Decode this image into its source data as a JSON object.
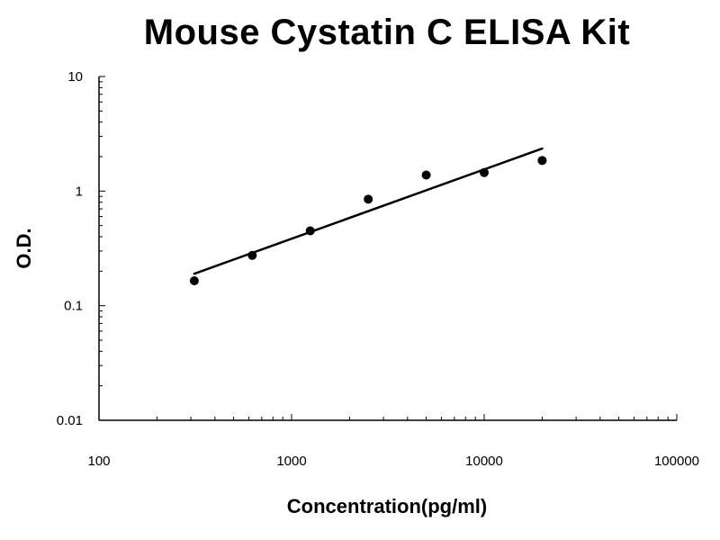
{
  "chart_data": {
    "type": "scatter",
    "title": "Mouse Cystatin C ELISA Kit",
    "xlabel": "Concentration(pg/ml)",
    "ylabel": "O.D.",
    "x_scale": "log",
    "y_scale": "log",
    "xlim": [
      100,
      100000
    ],
    "ylim": [
      0.01,
      10
    ],
    "x_ticks": [
      "100",
      "1000",
      "10000",
      "100000"
    ],
    "y_ticks": [
      "0.01",
      "0.1",
      "1",
      "10"
    ],
    "grid": false,
    "legend": "none",
    "points": [
      {
        "x": 312.5,
        "y": 0.165
      },
      {
        "x": 625,
        "y": 0.275
      },
      {
        "x": 1250,
        "y": 0.45
      },
      {
        "x": 2500,
        "y": 0.85
      },
      {
        "x": 5000,
        "y": 1.38
      },
      {
        "x": 10000,
        "y": 1.45
      },
      {
        "x": 20000,
        "y": 1.85
      }
    ],
    "fit_line": {
      "x": [
        312.5,
        20000
      ],
      "y": [
        0.19,
        2.35
      ]
    },
    "colors": {
      "points": "#000000",
      "line": "#000000",
      "axes": "#000000"
    }
  }
}
